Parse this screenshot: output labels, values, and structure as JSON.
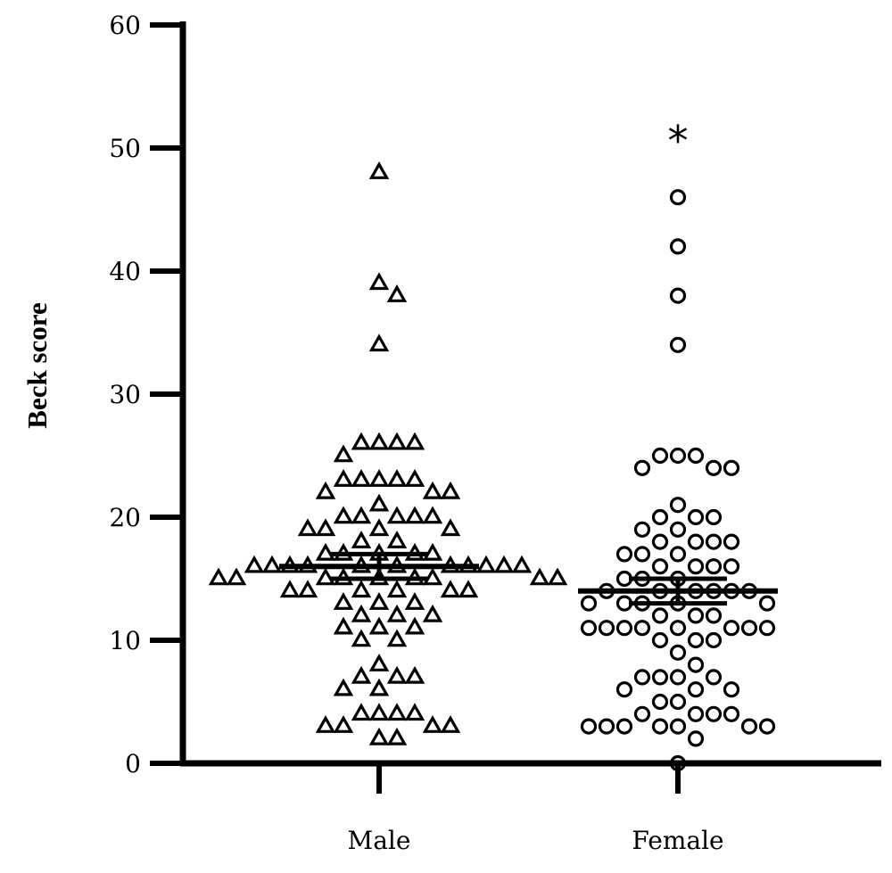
{
  "chart_data": {
    "type": "scatter",
    "ylabel": "Beck score",
    "xlabel": "",
    "ylim": [
      0,
      60
    ],
    "yticks": [
      "0",
      "10",
      "20",
      "30",
      "40",
      "50",
      "60"
    ],
    "categories": [
      "Male",
      "Female"
    ],
    "grid": false,
    "legend": "none",
    "series": [
      {
        "category": "Male",
        "marker": "triangle-open",
        "mean": 16,
        "sem_low": 15,
        "sem_high": 17,
        "values": [
          48,
          39,
          38,
          34,
          26,
          26,
          26,
          26,
          25,
          23,
          23,
          23,
          23,
          23,
          22,
          22,
          22,
          21,
          20,
          20,
          20,
          20,
          20,
          19,
          19,
          19,
          19,
          18,
          18,
          17,
          17,
          17,
          17,
          17,
          16,
          16,
          16,
          16,
          16,
          16,
          16,
          16,
          16,
          16,
          16,
          15,
          15,
          15,
          15,
          15,
          15,
          15,
          15,
          15,
          14,
          14,
          14,
          14,
          14,
          14,
          13,
          13,
          13,
          12,
          12,
          12,
          11,
          11,
          11,
          10,
          10,
          8,
          7,
          7,
          7,
          6,
          6,
          4,
          4,
          4,
          4,
          3,
          3,
          3,
          3,
          2,
          2
        ]
      },
      {
        "category": "Female",
        "marker": "circle-open",
        "mean": 14,
        "sem_low": 13,
        "sem_high": 15,
        "values": [
          46,
          42,
          38,
          34,
          25,
          25,
          25,
          24,
          24,
          24,
          21,
          20,
          20,
          20,
          19,
          19,
          18,
          18,
          18,
          18,
          17,
          17,
          17,
          16,
          16,
          16,
          16,
          15,
          15,
          15,
          14,
          14,
          14,
          14,
          14,
          14,
          13,
          13,
          13,
          13,
          13,
          12,
          12,
          12,
          11,
          11,
          11,
          11,
          11,
          11,
          11,
          11,
          10,
          10,
          10,
          9,
          8,
          7,
          7,
          7,
          7,
          6,
          6,
          6,
          5,
          5,
          4,
          4,
          4,
          4,
          3,
          3,
          3,
          3,
          3,
          3,
          3,
          2,
          0
        ]
      }
    ],
    "annotations": [
      {
        "category": "Female",
        "text": "*",
        "y": 51
      }
    ]
  }
}
